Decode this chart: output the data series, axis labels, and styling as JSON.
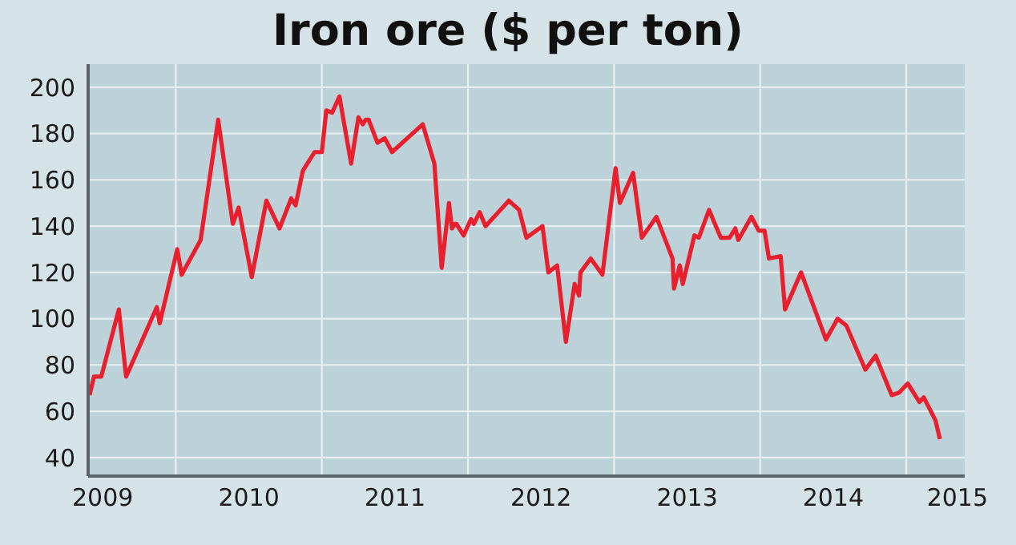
{
  "chart_data": {
    "type": "line",
    "title": "Iron ore ($ per ton)",
    "x": [
      2009.41,
      2009.44,
      2009.49,
      2009.61,
      2009.66,
      2009.87,
      2009.89,
      2010.01,
      2010.04,
      2010.17,
      2010.29,
      2010.39,
      2010.43,
      2010.52,
      2010.62,
      2010.71,
      2010.79,
      2010.82,
      2010.87,
      2010.95,
      2011.0,
      2011.03,
      2011.07,
      2011.12,
      2011.2,
      2011.25,
      2011.28,
      2011.3,
      2011.32,
      2011.38,
      2011.43,
      2011.48,
      2011.69,
      2011.77,
      2011.82,
      2011.87,
      2011.89,
      2011.91,
      2011.92,
      2011.97,
      2012.02,
      2012.04,
      2012.08,
      2012.12,
      2012.28,
      2012.35,
      2012.4,
      2012.51,
      2012.55,
      2012.61,
      2012.67,
      2012.73,
      2012.76,
      2012.77,
      2012.84,
      2012.92,
      2013.01,
      2013.04,
      2013.13,
      2013.19,
      2013.29,
      2013.4,
      2013.41,
      2013.45,
      2013.47,
      2013.55,
      2013.58,
      2013.65,
      2013.73,
      2013.79,
      2013.83,
      2013.85,
      2013.94,
      2013.99,
      2014.03,
      2014.06,
      2014.14,
      2014.17,
      2014.28,
      2014.45,
      2014.53,
      2014.59,
      2014.72,
      2014.79,
      2014.9,
      2014.95,
      2015.01,
      2015.09,
      2015.12,
      2015.2,
      2015.23
    ],
    "series": [
      {
        "color": "#e8202e",
        "values": [
          67,
          75,
          75,
          104,
          75,
          105,
          98,
          130,
          119,
          134,
          186,
          141,
          148,
          118,
          151,
          139,
          152,
          149,
          164,
          172,
          172,
          190,
          189,
          196,
          167,
          187,
          184,
          186,
          186,
          176,
          178,
          172,
          184,
          167,
          122,
          150,
          139,
          141,
          141,
          136,
          143,
          141,
          146,
          140,
          151,
          147,
          135,
          140,
          120,
          123,
          90,
          115,
          110,
          120,
          126,
          119,
          165,
          150,
          163,
          135,
          144,
          126,
          113,
          123,
          115,
          136,
          135,
          147,
          135,
          135,
          139,
          134,
          144,
          138,
          138,
          126,
          127,
          104,
          120,
          91,
          100,
          97,
          78,
          84,
          67,
          68,
          72,
          64,
          66,
          56,
          48
        ]
      }
    ],
    "xlim": [
      2009.4,
      2015.4
    ],
    "xticks": [
      {
        "value": 2009.5,
        "label": "2009"
      },
      {
        "value": 2010,
        "label": null
      },
      {
        "value": 2010.5,
        "label": "2010"
      },
      {
        "value": 2011,
        "label": null
      },
      {
        "value": 2011.5,
        "label": "2011"
      },
      {
        "value": 2012,
        "label": null
      },
      {
        "value": 2012.5,
        "label": "2012"
      },
      {
        "value": 2013,
        "label": null
      },
      {
        "value": 2013.5,
        "label": "2013"
      },
      {
        "value": 2014,
        "label": null
      },
      {
        "value": 2014.5,
        "label": "2014"
      },
      {
        "value": 2015,
        "label": null
      },
      {
        "value": 2015.35,
        "label": "2015"
      }
    ],
    "ylim": [
      32,
      210
    ],
    "yticks": [
      40,
      60,
      80,
      100,
      120,
      140,
      160,
      180,
      200
    ],
    "grid": true,
    "legend": false,
    "marker": "none",
    "line_style": "solid"
  }
}
